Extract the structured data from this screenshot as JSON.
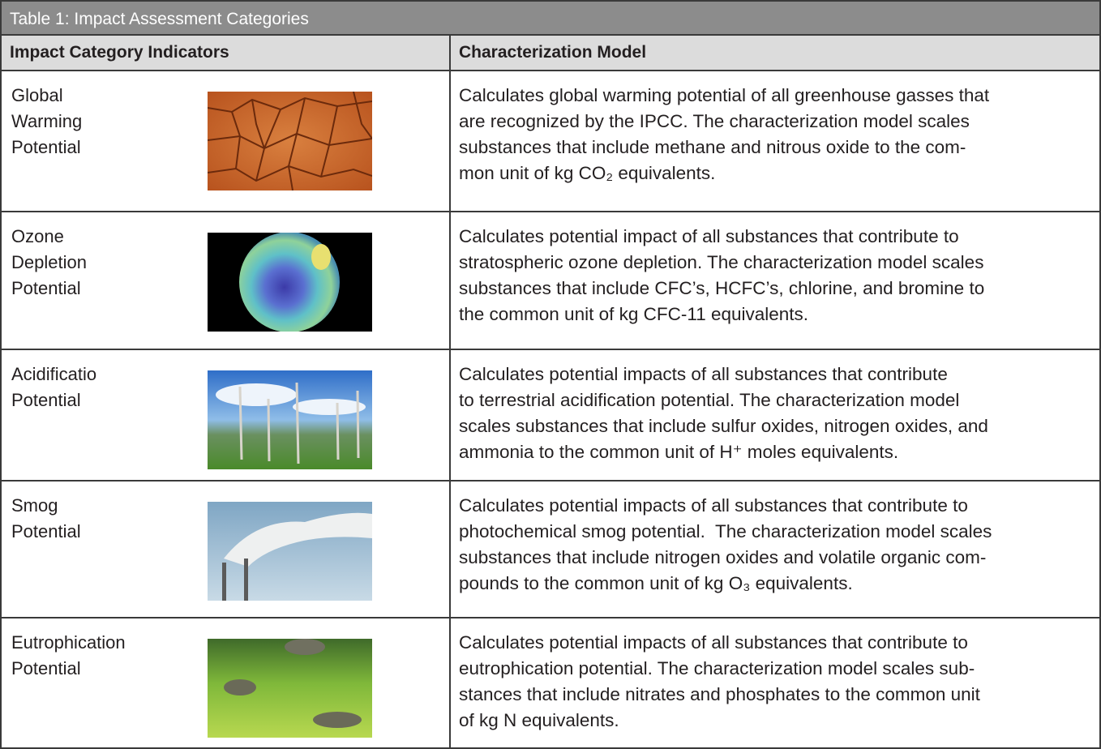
{
  "title": "Table 1:  Impact Assessment Categories",
  "table": {
    "header": [
      "Impact Category Indicators",
      "Characterization Model"
    ],
    "rows": [
      {
        "label": [
          "Global",
          "Warming",
          "Potential"
        ],
        "description": [
          "Calculates global warming potential of all greenhouse gasses that",
          "are recognized by the IPCC. The characterization model scales",
          "substances that include methane and nitrous oxide to the com-",
          "mon unit of kg CO₂ equivalents."
        ]
      },
      {
        "label": [
          "Ozone",
          "Depletion",
          "Potential"
        ],
        "description": [
          "Calculates potential impact of all substances that contribute to",
          "stratospheric ozone depletion. The characterization model scales",
          "substances that include CFC’s, HCFC’s, chlorine, and bromine to",
          "the common unit of kg CFC-11 equivalents."
        ]
      },
      {
        "label": [
          "Acidificatio",
          "Potential"
        ],
        "description": [
          "Calculates potential impacts of all substances that contribute",
          "to terrestrial acidification potential. The characterization model",
          "scales substances that include sulfur oxides, nitrogen oxides, and",
          "ammonia to the common unit of H⁺ moles equivalents."
        ]
      },
      {
        "label": [
          "Smog",
          "Potential"
        ],
        "description": [
          "Calculates potential impacts of all substances that contribute to",
          "photochemical smog potential.  The characterization model scales",
          "substances that include nitrogen oxides and volatile organic com-",
          "pounds to the common unit of kg O₃ equivalents."
        ]
      },
      {
        "label": [
          "Eutrophication",
          "Potential"
        ],
        "description": [
          "Calculates potential impacts of all substances that contribute to",
          "eutrophication potential. The characterization model scales sub-",
          "stances that include nitrates and phosphates to the common unit",
          "of kg N equivalents."
        ]
      }
    ]
  }
}
